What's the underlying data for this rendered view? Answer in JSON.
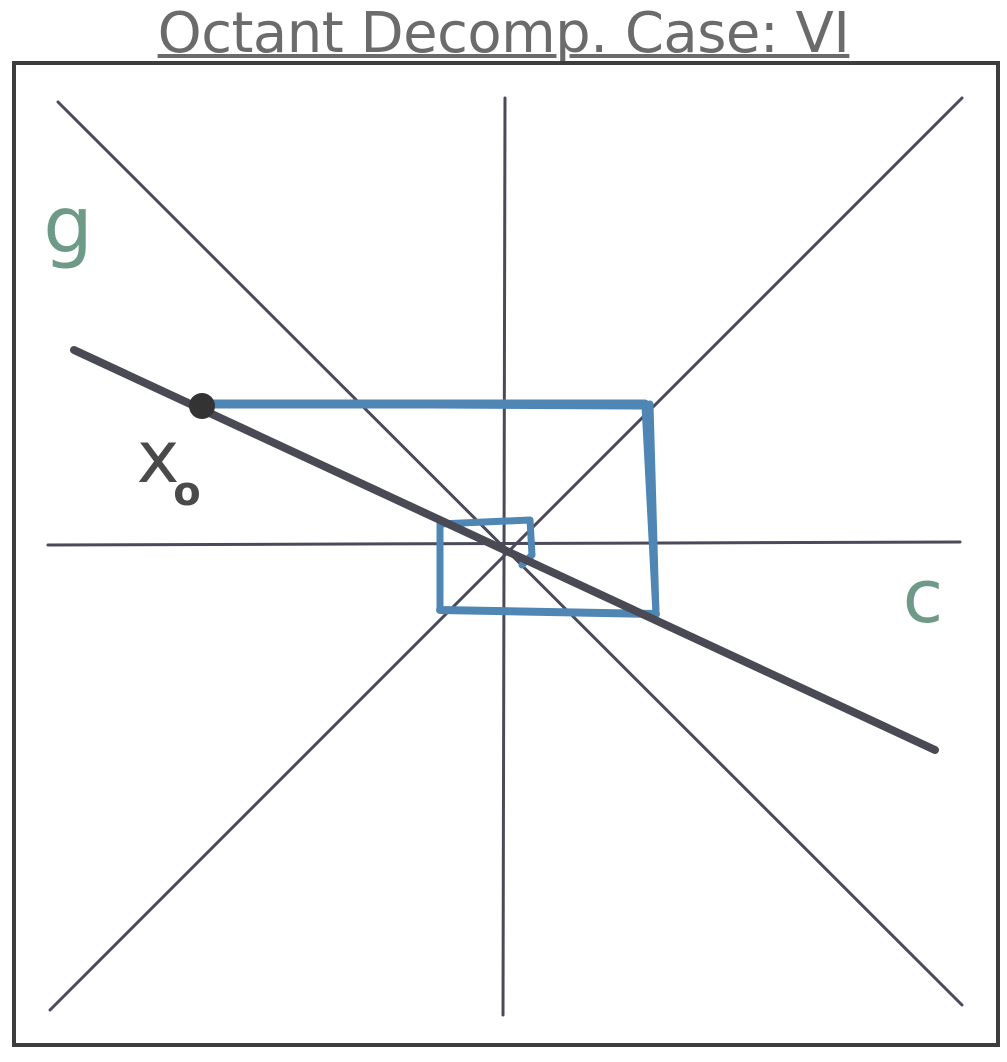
{
  "title": "Octant Decomp. Case: VI",
  "labels": {
    "vertical_axis": "g",
    "horizontal_axis": "c",
    "start_point": "x",
    "start_point_subscript": "o"
  },
  "colors": {
    "frame": "#3d3d3d",
    "guide_lines": "#4a4a5a",
    "trajectory": "#4a4a55",
    "boxes": "#4f86b4",
    "label_green": "#6f9a88",
    "label_dark": "#4a4a4a",
    "point": "#333333"
  }
}
